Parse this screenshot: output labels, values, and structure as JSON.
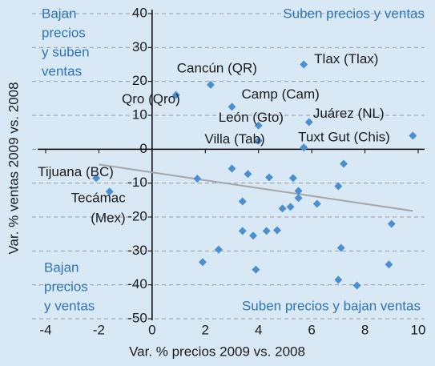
{
  "chart_data": {
    "type": "scatter",
    "x_label": "Var. % precios 2009 vs. 2008",
    "y_label": "Var. % ventas 2009 vs. 2008",
    "xlim": [
      -4,
      10
    ],
    "xticks": [
      -4,
      -2,
      0,
      2,
      4,
      6,
      8,
      10
    ],
    "ylim": [
      -50,
      40
    ],
    "yticks": [
      -50,
      -40,
      -30,
      -20,
      -10,
      0,
      10,
      20,
      30,
      40
    ],
    "grid": true,
    "color": "#4a8fd0",
    "labeled_points": [
      {
        "label": [
          "Cancún (QR)"
        ],
        "x": 2.2,
        "y": 19
      },
      {
        "label": [
          "Qro (Qro)"
        ],
        "x": 0.9,
        "y": 16
      },
      {
        "label": [
          "Camp (Cam)"
        ],
        "x": 3.0,
        "y": 12.5
      },
      {
        "label": [
          "Tlax (Tlax)"
        ],
        "x": 5.7,
        "y": 25
      },
      {
        "label": [
          "León (Gto)"
        ],
        "x": 4.0,
        "y": 7
      },
      {
        "label": [
          "Juárez (NL)"
        ],
        "x": 5.9,
        "y": 8
      },
      {
        "label": [
          "Villa (Tab)"
        ],
        "x": 4.0,
        "y": 2.5
      },
      {
        "label": [
          "Tuxt Gut (Chis)"
        ],
        "x": 5.7,
        "y": 0.5
      },
      {
        "label": [
          "Tijuana (BC)"
        ],
        "x": -2.1,
        "y": -8.5
      },
      {
        "label": [
          "Tecámac",
          "(Mex)"
        ],
        "x": -1.6,
        "y": -12.5
      }
    ],
    "x": [
      9.8,
      1.7,
      3.0,
      3.6,
      3.4,
      4.4,
      5.3,
      5.5,
      5.5,
      5.2,
      4.9,
      6.2,
      7.2,
      7.0,
      3.4,
      3.8,
      4.3,
      4.7,
      9.0,
      2.5,
      1.9,
      3.9,
      7.1,
      8.9,
      7.0,
      7.7
    ],
    "y": [
      4,
      -8.7,
      -5.7,
      -7.3,
      -15.4,
      -8.3,
      -8.5,
      -12.3,
      -14.4,
      -17,
      -17.5,
      -16.1,
      -4.3,
      -10.9,
      -24.1,
      -25.5,
      -24.1,
      -23.9,
      -22,
      -29.6,
      -33.3,
      -35.5,
      -29.1,
      -34,
      -38.5,
      -40.2
    ],
    "trend_line": {
      "x": [
        -2,
        9.8
      ],
      "y": [
        -4.5,
        -18.2
      ],
      "color": "#a6a6a6"
    },
    "quadrant_color": "#2e75b6",
    "quadrant_labels": {
      "top_left": [
        "Bajan",
        "precios",
        "y suben",
        "ventas"
      ],
      "top_right": [
        "Suben precios y ventas"
      ],
      "bottom_left": [
        "Bajan",
        "precios",
        "y ventas"
      ],
      "bottom_right": [
        "Suben precios y bajan ventas"
      ]
    }
  }
}
